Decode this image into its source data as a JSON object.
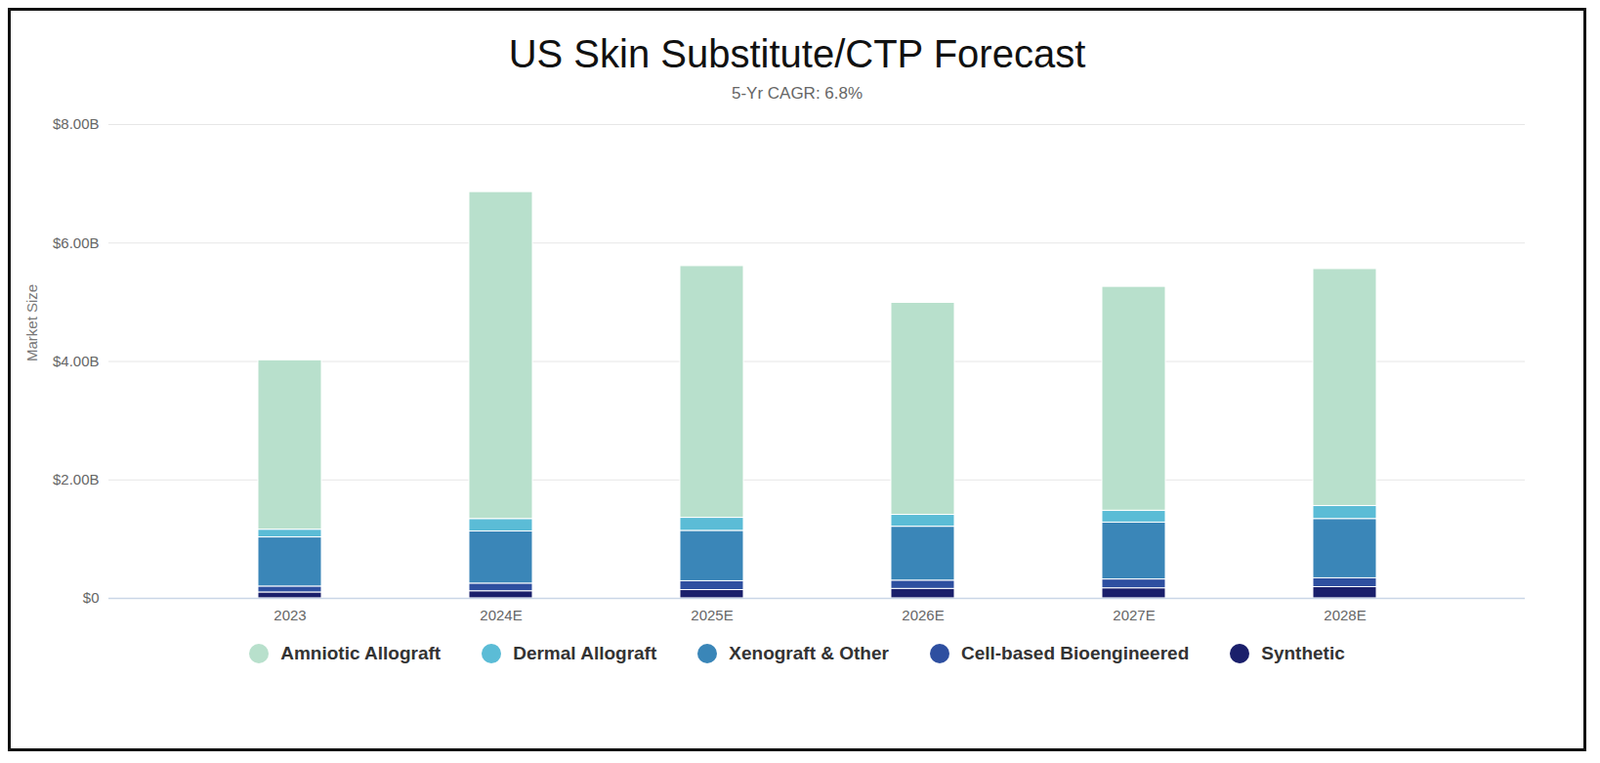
{
  "chart_data": {
    "type": "bar",
    "title": "US Skin Substitute/CTP Forecast",
    "subtitle": "5-Yr CAGR: 6.8%",
    "y_label": "Market Size",
    "stacked": true,
    "grid": true,
    "legend": "bottom",
    "categories": [
      "2023",
      "2024E",
      "2025E",
      "2026E",
      "2027E",
      "2028E"
    ],
    "series": [
      {
        "name": "Amniotic Allograft",
        "color": "#b8e0cc",
        "values": [
          2.86,
          5.52,
          4.25,
          3.58,
          3.78,
          4.0
        ]
      },
      {
        "name": "Dermal Allograft",
        "color": "#5bbcd6",
        "values": [
          0.13,
          0.21,
          0.22,
          0.2,
          0.2,
          0.22
        ]
      },
      {
        "name": "Xenograft & Other",
        "color": "#3a86b8",
        "values": [
          0.83,
          0.88,
          0.85,
          0.91,
          0.96,
          1.0
        ]
      },
      {
        "name": "Cell-based Bioengineered",
        "color": "#2e4fa0",
        "values": [
          0.1,
          0.13,
          0.15,
          0.14,
          0.15,
          0.15
        ]
      },
      {
        "name": "Synthetic",
        "color": "#1a1f6b",
        "values": [
          0.1,
          0.12,
          0.14,
          0.16,
          0.17,
          0.19
        ]
      }
    ],
    "ylim": [
      0,
      8
    ],
    "yticks": [
      {
        "value": 0,
        "label": "$0"
      },
      {
        "value": 2,
        "label": "$2.00B"
      },
      {
        "value": 4,
        "label": "$4.00B"
      },
      {
        "value": 6,
        "label": "$6.00B"
      },
      {
        "value": 8,
        "label": "$8.00B"
      }
    ]
  }
}
